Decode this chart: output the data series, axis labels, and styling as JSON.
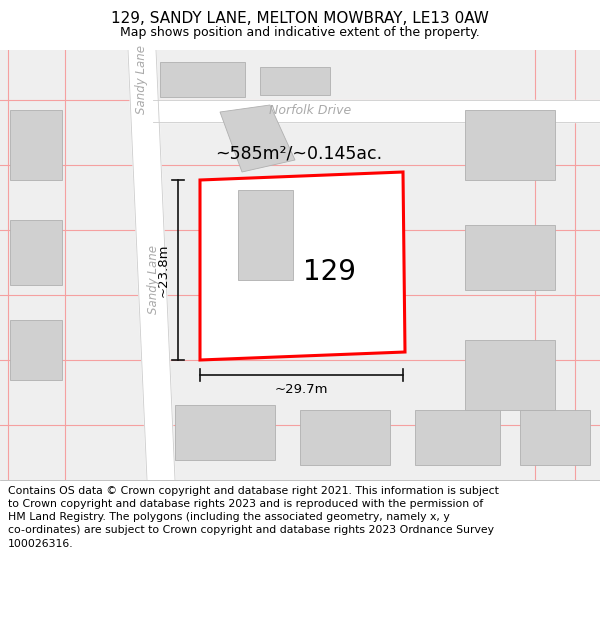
{
  "title": "129, SANDY LANE, MELTON MOWBRAY, LE13 0AW",
  "subtitle": "Map shows position and indicative extent of the property.",
  "footer": "Contains OS data © Crown copyright and database right 2021. This information is subject\nto Crown copyright and database rights 2023 and is reproduced with the permission of\nHM Land Registry. The polygons (including the associated geometry, namely x, y\nco-ordinates) are subject to Crown copyright and database rights 2023 Ordnance Survey\n100026316.",
  "bg_color": "#efefef",
  "map_bg": "#efefef",
  "street_color": "#ffffff",
  "street_border": "#cccccc",
  "pink_line_color": "#f5a0a0",
  "red_polygon_color": "#ff0000",
  "building_color": "#d0d0d0",
  "building_border": "#b0b0b0",
  "dim_line_color": "#111111",
  "label_129": "129",
  "label_area": "~585m²/~0.145ac.",
  "label_width": "~29.7m",
  "label_height": "~23.8m",
  "road_label_norfolk": "Norfolk Drive",
  "road_label_sandy_top": "Sandy Lane",
  "road_label_sandy_bot": "Sandy Lane",
  "title_fontsize": 11,
  "subtitle_fontsize": 9,
  "footer_fontsize": 7.8
}
